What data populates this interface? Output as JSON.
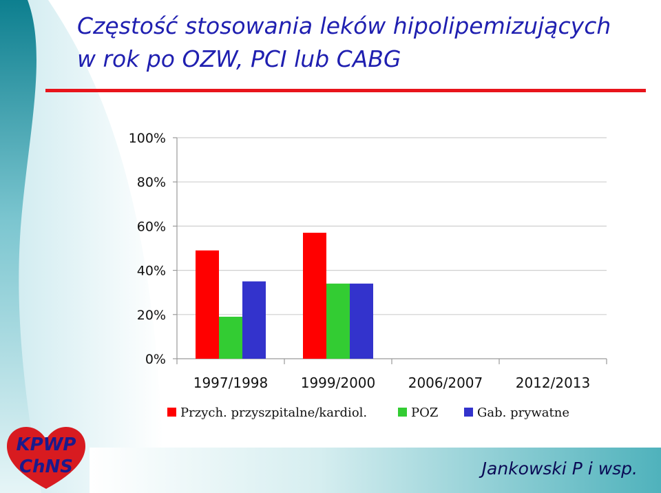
{
  "slide": {
    "title_line1": "Częstość stosowania leków hipolipemizujących",
    "title_line2": "w rok po OZW, PCI lub CABG",
    "author": "Jankowski P i wsp.",
    "logo_text": "KPWP ChNS"
  },
  "colors": {
    "title": "#1f1fb0",
    "rule": "#e8141b",
    "series": [
      "#ff0000",
      "#33cc33",
      "#3333cc"
    ]
  },
  "chart_data": {
    "type": "bar",
    "categories": [
      "1997/1998",
      "1999/2000",
      "2006/2007",
      "2012/2013"
    ],
    "series": [
      {
        "name": "Przych. przyszpitalne/kardiol.",
        "values": [
          49,
          57,
          null,
          null
        ]
      },
      {
        "name": "POZ",
        "values": [
          19,
          34,
          null,
          null
        ]
      },
      {
        "name": "Gab. prywatne",
        "values": [
          35,
          34,
          null,
          null
        ]
      }
    ],
    "ylim": [
      0,
      100
    ],
    "yticks": [
      "0%",
      "20%",
      "40%",
      "60%",
      "80%",
      "100%"
    ],
    "grid": true,
    "legend": "bottom",
    "xlabel": "",
    "ylabel": ""
  }
}
